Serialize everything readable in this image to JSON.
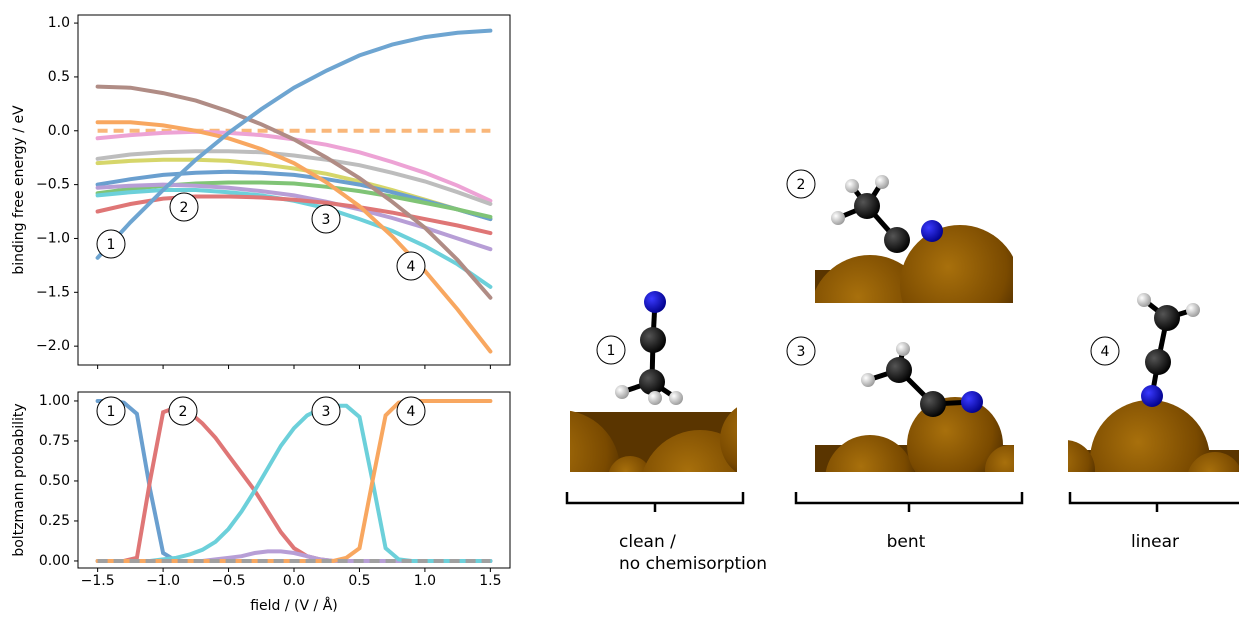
{
  "chart_data": [
    {
      "type": "line",
      "ylabel": "binding free energy / eV",
      "x": [
        -1.5,
        -1.25,
        -1.0,
        -0.75,
        -0.5,
        -0.25,
        0,
        0.25,
        0.5,
        0.75,
        1.0,
        1.25,
        1.5
      ],
      "xlim": [
        -1.65,
        1.65
      ],
      "xticks": [
        -1.5,
        -1.0,
        -0.5,
        0,
        0.5,
        1.0,
        1.5
      ],
      "ylim": [
        -2.175,
        1.075
      ],
      "yticks": [
        {
          "value": 1,
          "label": "1.0"
        },
        {
          "value": 0.5,
          "label": "0.5"
        },
        {
          "value": 0,
          "label": "0.0"
        },
        {
          "value": -0.5,
          "label": "−0.5"
        },
        {
          "value": -1,
          "label": "−1.0"
        },
        {
          "value": -1.5,
          "label": "−1.5"
        },
        {
          "value": -2,
          "label": "−2.0"
        }
      ],
      "annotations": [
        "1",
        "2",
        "3",
        "4"
      ],
      "series": [
        {
          "color": "#f9b77a",
          "dashed": true,
          "values": [
            0,
            0,
            0,
            0,
            0,
            0,
            0,
            0,
            0,
            0,
            0,
            0,
            0
          ]
        },
        {
          "color": "#eda3d5",
          "values": [
            -0.07,
            -0.04,
            -0.02,
            -0.01,
            -0.02,
            -0.04,
            -0.08,
            -0.13,
            -0.2,
            -0.29,
            -0.39,
            -0.51,
            -0.65
          ]
        },
        {
          "color": "#bdbdbd",
          "values": [
            -0.26,
            -0.22,
            -0.2,
            -0.19,
            -0.19,
            -0.2,
            -0.23,
            -0.27,
            -0.32,
            -0.39,
            -0.47,
            -0.57,
            -0.68
          ]
        },
        {
          "color": "#d6d66a",
          "values": [
            -0.3,
            -0.28,
            -0.27,
            -0.27,
            -0.28,
            -0.31,
            -0.35,
            -0.4,
            -0.47,
            -0.55,
            -0.64,
            -0.73,
            -0.82
          ]
        },
        {
          "color": "#6a9fcf",
          "values": [
            -0.5,
            -0.45,
            -0.41,
            -0.39,
            -0.38,
            -0.39,
            -0.41,
            -0.45,
            -0.5,
            -0.57,
            -0.65,
            -0.73,
            -0.82
          ]
        },
        {
          "color": "#80c476",
          "values": [
            -0.58,
            -0.54,
            -0.51,
            -0.49,
            -0.48,
            -0.48,
            -0.49,
            -0.52,
            -0.56,
            -0.61,
            -0.67,
            -0.73,
            -0.8
          ]
        },
        {
          "color": "#b79ed6",
          "values": [
            -0.53,
            -0.51,
            -0.5,
            -0.51,
            -0.53,
            -0.56,
            -0.6,
            -0.66,
            -0.73,
            -0.81,
            -0.9,
            -1.0,
            -1.1
          ]
        },
        {
          "color": "#6cd0da",
          "values": [
            -0.6,
            -0.57,
            -0.55,
            -0.55,
            -0.57,
            -0.6,
            -0.65,
            -0.72,
            -0.82,
            -0.93,
            -1.07,
            -1.24,
            -1.45
          ]
        },
        {
          "color": "#df7676",
          "values": [
            -0.75,
            -0.68,
            -0.63,
            -0.61,
            -0.61,
            -0.62,
            -0.64,
            -0.67,
            -0.71,
            -0.76,
            -0.82,
            -0.88,
            -0.95
          ]
        },
        {
          "color": "#b08c85",
          "values": [
            0.41,
            0.4,
            0.35,
            0.28,
            0.18,
            0.06,
            -0.08,
            -0.25,
            -0.44,
            -0.66,
            -0.9,
            -1.2,
            -1.55
          ]
        },
        {
          "color": "#f8a760",
          "values": [
            0.08,
            0.08,
            0.05,
            0,
            -0.07,
            -0.17,
            -0.3,
            -0.48,
            -0.7,
            -0.98,
            -1.3,
            -1.66,
            -2.05
          ]
        },
        {
          "color": "#6ea5d1",
          "values": [
            -1.18,
            -0.85,
            -0.55,
            -0.27,
            -0.02,
            0.2,
            0.4,
            0.56,
            0.7,
            0.8,
            0.87,
            0.91,
            0.93
          ]
        }
      ]
    },
    {
      "type": "line",
      "ylabel": "boltzmann probability",
      "xlabel": "field / (V / Å)",
      "x": [
        -1.5,
        -1.4,
        -1.3,
        -1.2,
        -1.1,
        -1.0,
        -0.9,
        -0.8,
        -0.7,
        -0.6,
        -0.5,
        -0.4,
        -0.3,
        -0.2,
        -0.1,
        0,
        0.1,
        0.2,
        0.3,
        0.4,
        0.5,
        0.6,
        0.7,
        0.8,
        0.9,
        1.0,
        1.1,
        1.2,
        1.3,
        1.4,
        1.5
      ],
      "xlim": [
        -1.65,
        1.65
      ],
      "xticks": [
        {
          "value": -1.5,
          "label": "−1.5"
        },
        {
          "value": -1,
          "label": "−1.0"
        },
        {
          "value": -0.5,
          "label": "−0.5"
        },
        {
          "value": 0,
          "label": "0.0"
        },
        {
          "value": 0.5,
          "label": "0.5"
        },
        {
          "value": 1,
          "label": "1.0"
        },
        {
          "value": 1.5,
          "label": "1.5"
        }
      ],
      "ylim": [
        -0.044,
        1.056
      ],
      "yticks": [
        {
          "value": 0,
          "label": "0.00"
        },
        {
          "value": 0.25,
          "label": "0.25"
        },
        {
          "value": 0.5,
          "label": "0.50"
        },
        {
          "value": 0.75,
          "label": "0.75"
        },
        {
          "value": 1,
          "label": "1.00"
        }
      ],
      "annotations": [
        "1",
        "2",
        "3",
        "4"
      ],
      "series": [
        {
          "color": "#6a9fcf",
          "values": [
            1,
            1,
            0.99,
            0.92,
            0.45,
            0.05,
            0,
            0,
            0,
            0,
            0,
            0,
            0,
            0,
            0,
            0,
            0,
            0,
            0,
            0,
            0,
            0,
            0,
            0,
            0,
            0,
            0,
            0,
            0,
            0,
            0
          ]
        },
        {
          "color": "#df7676",
          "values": [
            0,
            0,
            0,
            0.02,
            0.5,
            0.93,
            0.96,
            0.93,
            0.86,
            0.77,
            0.66,
            0.55,
            0.44,
            0.31,
            0.18,
            0.08,
            0.03,
            0.01,
            0,
            0,
            0,
            0,
            0,
            0,
            0,
            0,
            0,
            0,
            0,
            0,
            0
          ]
        },
        {
          "color": "#b79ed6",
          "values": [
            0,
            0,
            0,
            0,
            0,
            0,
            0,
            0,
            0,
            0.01,
            0.02,
            0.03,
            0.05,
            0.06,
            0.06,
            0.05,
            0.03,
            0.01,
            0,
            0,
            0,
            0,
            0,
            0,
            0,
            0,
            0,
            0,
            0,
            0,
            0
          ]
        },
        {
          "color": "#6cd0da",
          "values": [
            0,
            0,
            0,
            0,
            0,
            0.01,
            0.02,
            0.04,
            0.07,
            0.12,
            0.2,
            0.31,
            0.44,
            0.58,
            0.72,
            0.83,
            0.91,
            0.95,
            0.97,
            0.97,
            0.9,
            0.5,
            0.08,
            0.01,
            0,
            0,
            0,
            0,
            0,
            0,
            0
          ]
        },
        {
          "color": "#f8a760",
          "values": [
            0,
            0,
            0,
            0,
            0,
            0,
            0,
            0,
            0,
            0,
            0,
            0,
            0,
            0,
            0,
            0,
            0,
            0,
            0,
            0.02,
            0.08,
            0.5,
            0.91,
            0.99,
            1,
            1,
            1,
            1,
            1,
            1,
            1
          ]
        },
        {
          "color": "#a0a0a0",
          "dashed": true,
          "values": [
            0,
            0,
            0,
            0,
            0,
            0,
            0,
            0,
            0,
            0,
            0,
            0,
            0,
            0,
            0,
            0,
            0,
            0,
            0,
            0,
            0,
            0,
            0,
            0,
            0,
            0,
            0,
            0,
            0,
            0,
            0
          ]
        }
      ]
    }
  ],
  "structures": {
    "labels": [
      "1",
      "2",
      "3",
      "4"
    ],
    "captions": [
      [
        "clean /",
        "no chemisorption"
      ],
      [
        "bent"
      ],
      [
        "linear"
      ]
    ]
  }
}
